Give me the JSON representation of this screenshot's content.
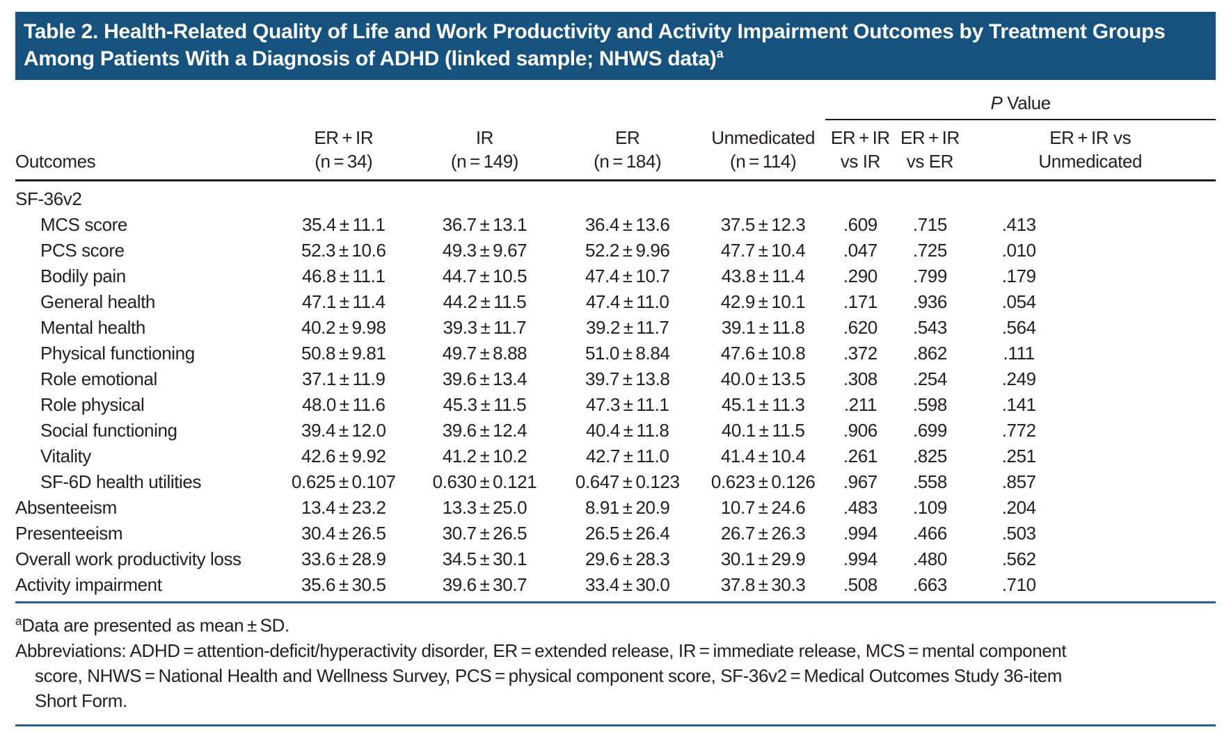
{
  "title": {
    "text": "Table 2. Health-Related Quality of Life and Work Productivity and Activity Impairment Outcomes by Treatment Groups Among Patients With a Diagnosis of ADHD (linked sample; NHWS data)",
    "marker": "a"
  },
  "table": {
    "p_group": {
      "p": "P",
      "rest": " Value"
    },
    "columns": [
      {
        "label": "Outcomes"
      },
      {
        "line1": "ER + IR",
        "line2": "(n = 34)"
      },
      {
        "line1": "IR",
        "line2": "(n = 149)"
      },
      {
        "line1": "ER",
        "line2": "(n = 184)"
      },
      {
        "line1": "Unmedicated",
        "line2": "(n = 114)"
      },
      {
        "line1": "ER + IR",
        "line2": "vs IR"
      },
      {
        "line1": "ER + IR",
        "line2": "vs ER"
      },
      {
        "line1": "ER + IR vs",
        "line2": "Unmedicated"
      }
    ],
    "rows": [
      {
        "label": "SF-36v2",
        "indent": false,
        "values": [
          "",
          "",
          "",
          "",
          "",
          "",
          ""
        ]
      },
      {
        "label": "MCS score",
        "indent": true,
        "values": [
          "35.4 ± 11.1",
          "36.7 ± 13.1",
          "36.4 ± 13.6",
          "37.5 ± 12.3",
          ".609",
          ".715",
          ".413"
        ]
      },
      {
        "label": "PCS score",
        "indent": true,
        "values": [
          "52.3 ± 10.6",
          "49.3 ± 9.67",
          "52.2 ± 9.96",
          "47.7 ± 10.4",
          ".047",
          ".725",
          ".010"
        ]
      },
      {
        "label": "Bodily pain",
        "indent": true,
        "values": [
          "46.8 ± 11.1",
          "44.7 ± 10.5",
          "47.4 ± 10.7",
          "43.8 ± 11.4",
          ".290",
          ".799",
          ".179"
        ]
      },
      {
        "label": "General health",
        "indent": true,
        "values": [
          "47.1 ± 11.4",
          "44.2 ± 11.5",
          "47.4 ± 11.0",
          "42.9 ± 10.1",
          ".171",
          ".936",
          ".054"
        ]
      },
      {
        "label": "Mental health",
        "indent": true,
        "values": [
          "40.2 ± 9.98",
          "39.3 ± 11.7",
          "39.2 ± 11.7",
          "39.1 ± 11.8",
          ".620",
          ".543",
          ".564"
        ]
      },
      {
        "label": "Physical functioning",
        "indent": true,
        "values": [
          "50.8 ± 9.81",
          "49.7 ± 8.88",
          "51.0 ± 8.84",
          "47.6 ± 10.8",
          ".372",
          ".862",
          ".111"
        ]
      },
      {
        "label": "Role emotional",
        "indent": true,
        "values": [
          "37.1 ± 11.9",
          "39.6 ± 13.4",
          "39.7 ± 13.8",
          "40.0 ± 13.5",
          ".308",
          ".254",
          ".249"
        ]
      },
      {
        "label": "Role physical",
        "indent": true,
        "values": [
          "48.0 ± 11.6",
          "45.3 ± 11.5",
          "47.3 ± 11.1",
          "45.1 ± 11.3",
          ".211",
          ".598",
          ".141"
        ]
      },
      {
        "label": "Social functioning",
        "indent": true,
        "values": [
          "39.4 ± 12.0",
          "39.6 ± 12.4",
          "40.4 ± 11.8",
          "40.1 ± 11.5",
          ".906",
          ".699",
          ".772"
        ]
      },
      {
        "label": "Vitality",
        "indent": true,
        "values": [
          "42.6 ± 9.92",
          "41.2 ± 10.2",
          "42.7 ± 11.0",
          "41.4 ± 10.4",
          ".261",
          ".825",
          ".251"
        ]
      },
      {
        "label": "SF-6D health utilities",
        "indent": true,
        "values": [
          "0.625 ± 0.107",
          "0.630 ± 0.121",
          "0.647 ± 0.123",
          "0.623 ± 0.126",
          ".967",
          ".558",
          ".857"
        ]
      },
      {
        "label": "Absenteeism",
        "indent": false,
        "values": [
          "13.4 ± 23.2",
          "13.3 ± 25.0",
          "8.91 ± 20.9",
          "10.7 ± 24.6",
          ".483",
          ".109",
          ".204"
        ]
      },
      {
        "label": "Presenteeism",
        "indent": false,
        "values": [
          "30.4 ± 26.5",
          "30.7 ± 26.5",
          "26.5 ± 26.4",
          "26.7 ± 26.3",
          ".994",
          ".466",
          ".503"
        ]
      },
      {
        "label": "Overall work productivity loss",
        "indent": false,
        "values": [
          "33.6 ± 28.9",
          "34.5 ± 30.1",
          "29.6 ± 28.3",
          "30.1 ± 29.9",
          ".994",
          ".480",
          ".562"
        ]
      },
      {
        "label": "Activity impairment",
        "indent": false,
        "values": [
          "35.6 ± 30.5",
          "39.6 ± 30.7",
          "33.4 ± 30.0",
          "37.8 ± 30.3",
          ".508",
          ".663",
          ".710"
        ]
      }
    ]
  },
  "footnotes": {
    "a_marker": "a",
    "a_text": "Data are presented as mean ± SD.",
    "abbreviations": "Abbreviations: ADHD = attention-deficit/hyperactivity disorder, ER = extended release, IR = immediate release, MCS = mental component score, NHWS = National Health and Wellness Survey, PCS = physical component score, SF-36v2 = Medical Outcomes Study 36-item Short Form."
  },
  "colors": {
    "title_bar_bg": "#17527e",
    "title_text": "#ffffff",
    "rule_blue": "#275e8f",
    "header_rule": "#1a1a1a",
    "body_text": "#231f20"
  }
}
